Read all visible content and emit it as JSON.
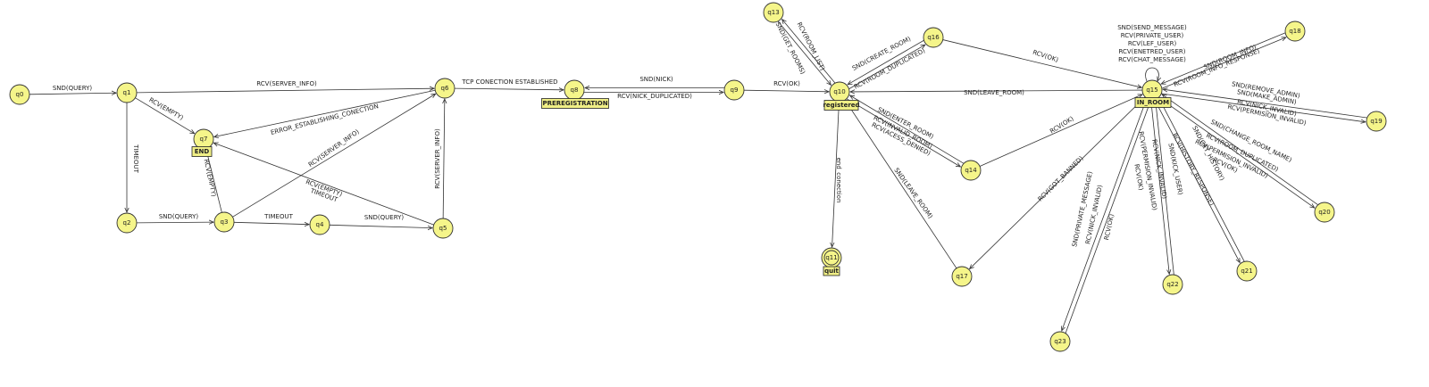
{
  "diagram": {
    "colors": {
      "state_fill": "#f5f58a",
      "tag_fill": "#f0ef86",
      "stroke": "#333333",
      "text": "#222222"
    },
    "states": [
      {
        "id": "q0",
        "label": "q0"
      },
      {
        "id": "q1",
        "label": "q1"
      },
      {
        "id": "q2",
        "label": "q2"
      },
      {
        "id": "q3",
        "label": "q3"
      },
      {
        "id": "q4",
        "label": "q4"
      },
      {
        "id": "q5",
        "label": "q5"
      },
      {
        "id": "q6",
        "label": "q6"
      },
      {
        "id": "q7",
        "label": "q7",
        "tag": "END"
      },
      {
        "id": "q8",
        "label": "q8",
        "tag": "PREREGISTRATION"
      },
      {
        "id": "q9",
        "label": "q9"
      },
      {
        "id": "q10",
        "label": "q10",
        "tag": "registered"
      },
      {
        "id": "q11",
        "label": "q11",
        "tag": "quit",
        "final": true
      },
      {
        "id": "q13",
        "label": "q13"
      },
      {
        "id": "q14",
        "label": "q14"
      },
      {
        "id": "q15",
        "label": "q15",
        "tag": "IN_ROOM"
      },
      {
        "id": "q16",
        "label": "q16"
      },
      {
        "id": "q17",
        "label": "q17"
      },
      {
        "id": "q18",
        "label": "q18"
      },
      {
        "id": "q19",
        "label": "q19"
      },
      {
        "id": "q20",
        "label": "q20"
      },
      {
        "id": "q21",
        "label": "q21"
      },
      {
        "id": "q22",
        "label": "q22"
      },
      {
        "id": "q23",
        "label": "q23"
      }
    ],
    "transitions": [
      {
        "from": "q0",
        "to": "q1",
        "label": "SND(QUERY)"
      },
      {
        "from": "q1",
        "to": "q6",
        "label": "RCV(SERVER_INFO)"
      },
      {
        "from": "q1",
        "to": "q7",
        "label": "RCV(EMPTY)"
      },
      {
        "from": "q1",
        "to": "q2",
        "label": "TIMEOUT"
      },
      {
        "from": "q2",
        "to": "q3",
        "label": "SND(QUERY)"
      },
      {
        "from": "q3",
        "to": "q4",
        "label": "TIMEOUT"
      },
      {
        "from": "q4",
        "to": "q5",
        "label": "SND(QUERY)"
      },
      {
        "from": "q3",
        "to": "q7",
        "label": "RCV(EMPTY)"
      },
      {
        "from": "q3",
        "to": "q6",
        "label": "RCV(SERVER_INFO)"
      },
      {
        "from": "q5",
        "to": "q6",
        "label": "RCV(SERVER_INFO)"
      },
      {
        "from": "q5",
        "to": "q7",
        "label": "RCV(EMPTY)"
      },
      {
        "from": "q5",
        "to": "q7",
        "label": "TIMEOUT"
      },
      {
        "from": "q6",
        "to": "q7",
        "label": "ERROR_ESTABLISHING_CONECTION"
      },
      {
        "from": "q6",
        "to": "q8",
        "label": "TCP CONECTION ESTABLISHED"
      },
      {
        "from": "q8",
        "to": "q9",
        "label": "SND(NICK)"
      },
      {
        "from": "q9",
        "to": "q8",
        "label": "RCV(NICK_DUPLICATED)"
      },
      {
        "from": "q9",
        "to": "q10",
        "label": "RCV(OK)"
      },
      {
        "from": "q10",
        "to": "q13",
        "label": "SND(GET_ROOMS)"
      },
      {
        "from": "q13",
        "to": "q10",
        "label": "RCV(ROOM_LIST)"
      },
      {
        "from": "q10",
        "to": "q16",
        "label": "SND(CREATE_ROOM)"
      },
      {
        "from": "q16",
        "to": "q10",
        "label": "RCV(ROOM_DUPLICATED)"
      },
      {
        "from": "q16",
        "to": "q15",
        "label": "RCV(OK)"
      },
      {
        "from": "q10",
        "to": "q14",
        "label": "SND(ENTER_ROOM)"
      },
      {
        "from": "q14",
        "to": "q10",
        "label": "RCV(INVALID_ROOM)"
      },
      {
        "from": "q14",
        "to": "q10",
        "label": "RCV(ACESS_DENIED)"
      },
      {
        "from": "q14",
        "to": "q15",
        "label": "RCV(OK)"
      },
      {
        "from": "q15",
        "to": "q10",
        "label": "SND(LEAVE_ROOM)"
      },
      {
        "from": "q10",
        "to": "q11",
        "label": "end_conection"
      },
      {
        "from": "q17",
        "to": "q10",
        "label": "SND(LEAVE_ROOM)"
      },
      {
        "from": "q15",
        "to": "q17",
        "label": "RCV(GOT_BANNED)"
      },
      {
        "from": "q15",
        "to": "q15",
        "label": "SND(SEND_MESSAGE)"
      },
      {
        "from": "q15",
        "to": "q15",
        "label": "RCV(PRIVATE_USER)"
      },
      {
        "from": "q15",
        "to": "q15",
        "label": "RCV(LEF_USER)"
      },
      {
        "from": "q15",
        "to": "q15",
        "label": "RCV(ENETRED_USER)"
      },
      {
        "from": "q15",
        "to": "q15",
        "label": "RCV(CHAT_MESSAGE)"
      },
      {
        "from": "q15",
        "to": "q18",
        "label": "SND(ROOM_INFO)"
      },
      {
        "from": "q18",
        "to": "q15",
        "label": "RCV(ROOM_INFO_RESPONSE)"
      },
      {
        "from": "q15",
        "to": "q19",
        "label": "SND(REMOVE_ADMIN)"
      },
      {
        "from": "q15",
        "to": "q19",
        "label": "SND(MAKE_ADMIN)"
      },
      {
        "from": "q19",
        "to": "q15",
        "label": "RCV(NICK_INVALID)"
      },
      {
        "from": "q19",
        "to": "q15",
        "label": "RCV(PERMISION_INVALID)"
      },
      {
        "from": "q15",
        "to": "q20",
        "label": "SND(CHANGE_ROOM_NAME)"
      },
      {
        "from": "q20",
        "to": "q15",
        "label": "RCV(ROOM_DUPLICATED)"
      },
      {
        "from": "q20",
        "to": "q15",
        "label": "RCV(PERMISION_INVALID)"
      },
      {
        "from": "q20",
        "to": "q15",
        "label": "RCV(OK)"
      },
      {
        "from": "q15",
        "to": "q21",
        "label": "SND(GET_HISTORY)"
      },
      {
        "from": "q21",
        "to": "q15",
        "label": "RCV(HISTORY_RESPONSE)"
      },
      {
        "from": "q15",
        "to": "q22",
        "label": "SND(KICK_USER)"
      },
      {
        "from": "q22",
        "to": "q15",
        "label": "RCV(NICK_INVALID)"
      },
      {
        "from": "q22",
        "to": "q15",
        "label": "RCV(PERMISION_INVALID)"
      },
      {
        "from": "q22",
        "to": "q15",
        "label": "RCV(OK)"
      },
      {
        "from": "q15",
        "to": "q23",
        "label": "SND(PRIVATE_MESSAGE)"
      },
      {
        "from": "q23",
        "to": "q15",
        "label": "RCV(NICK_INVALID)"
      },
      {
        "from": "q23",
        "to": "q15",
        "label": "RCV(OK)"
      }
    ]
  }
}
